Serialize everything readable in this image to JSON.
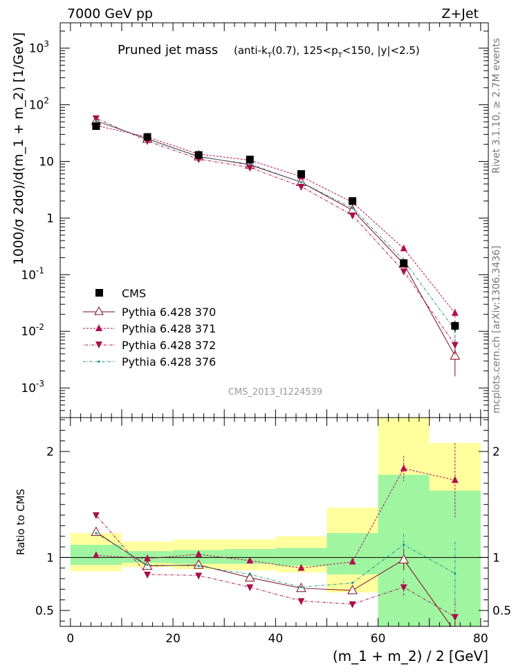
{
  "header": {
    "left": "7000 GeV pp",
    "right": "Z+Jet"
  },
  "side": {
    "rivet": "Rivet 3.1.10, ≥ 2.7M events",
    "mcplots": "mcplots.cern.ch [arXiv:1306.3436]"
  },
  "watermark": "CMS_2013_I1224539",
  "title": {
    "main": "Pruned jet mass",
    "cuts_a": "(anti-k",
    "cuts_a_sub": "T",
    "cuts_b": "(0.7), 125<p",
    "cuts_b_sub": "T",
    "cuts_c": "<150, |y|<2.5)"
  },
  "legend": {
    "cms": "CMS",
    "p370": "Pythia 6.428 370",
    "p371": "Pythia 6.428 371",
    "p372": "Pythia 6.428 372",
    "p376": "Pythia 6.428 376"
  },
  "colors": {
    "data": "#000000",
    "p370": "#7a0a1e",
    "p371": "#b0104f",
    "p372": "#a8104a",
    "p376": "#1f8f8a",
    "band_green": "#a0f5a0",
    "band_yellow": "#ffff9e"
  },
  "chart_data": {
    "type": "line",
    "x_edges": [
      0,
      10,
      20,
      30,
      40,
      50,
      60,
      70,
      80
    ],
    "x": [
      5,
      15,
      25,
      35,
      45,
      55,
      65,
      75
    ],
    "xlabel": "(m_1 + m_2) / 2 [GeV]",
    "xlim": [
      -2,
      81.5
    ],
    "xticks": [
      0,
      20,
      40,
      60,
      80
    ],
    "top": {
      "ylabel": "1000/σ 2dσ)/d(m_1 + m_2) [1/GeV]",
      "yscale": "log",
      "ylim": [
        0.0003,
        2800
      ],
      "ytick_labels": [
        "10",
        "10",
        "10",
        "10",
        "1",
        "10",
        "10",
        "10"
      ],
      "ytick_exponents": [
        "3",
        "2",
        "",
        "",
        "",
        "-1",
        "-2",
        "-3"
      ],
      "cms": [
        42,
        27,
        13,
        10.8,
        6.0,
        2.0,
        0.16,
        0.0125
      ],
      "cms_err": [
        2,
        1.2,
        0.6,
        0.5,
        0.3,
        0.1,
        0.015,
        0.003
      ],
      "series": [
        {
          "name": "Pythia 6.428 370",
          "values": [
            52,
            25,
            12.2,
            8.7,
            4.3,
            1.38,
            0.155,
            0.0037
          ],
          "err": [
            0,
            0,
            0,
            0,
            0,
            0,
            0.015,
            0.0021
          ]
        },
        {
          "name": "Pythia 6.428 371",
          "values": [
            43,
            27,
            13.5,
            10.5,
            5.4,
            1.9,
            0.29,
            0.021
          ],
          "err": [
            0,
            0,
            0,
            0,
            0,
            0,
            0.02,
            0.004
          ]
        },
        {
          "name": "Pythia 6.428 372",
          "values": [
            58,
            23,
            11.0,
            7.8,
            3.6,
            1.12,
            0.115,
            0.0058
          ],
          "err": [
            0,
            0,
            0,
            0,
            0,
            0,
            0.01,
            0.002
          ]
        },
        {
          "name": "Pythia 6.428 376",
          "values": [
            52,
            25,
            12.0,
            9.0,
            4.3,
            1.5,
            0.18,
            0.0105
          ],
          "err": [
            0,
            0,
            0,
            0,
            0,
            0,
            0.02,
            0.004
          ]
        }
      ]
    },
    "ratio": {
      "ylabel": "Ratio to CMS",
      "ylim": [
        0.35,
        2.32
      ],
      "yticks": [
        0.5,
        1,
        2
      ],
      "ytick_labels": [
        "0.5",
        "1",
        "2"
      ],
      "band_green": [
        [
          0.93,
          1.12
        ],
        [
          0.95,
          1.06
        ],
        [
          0.94,
          1.07
        ],
        [
          0.94,
          1.08
        ],
        [
          0.92,
          1.09
        ],
        [
          0.84,
          1.23
        ],
        [
          0.34,
          1.78
        ],
        [
          0.34,
          1.63
        ]
      ],
      "band_yellow": [
        [
          0.87,
          1.23
        ],
        [
          0.91,
          1.15
        ],
        [
          0.89,
          1.17
        ],
        [
          0.88,
          1.17
        ],
        [
          0.86,
          1.2
        ],
        [
          0.67,
          1.47
        ],
        [
          0.34,
          2.32
        ],
        [
          0.42,
          2.08
        ]
      ],
      "series": [
        {
          "name": "Pythia 6.428 370",
          "values": [
            1.24,
            0.92,
            0.93,
            0.81,
            0.71,
            0.69,
            0.98,
            0.3
          ],
          "err": [
            0,
            0,
            0,
            0,
            0,
            0,
            0.1,
            0.1
          ]
        },
        {
          "name": "Pythia 6.428 371",
          "values": [
            1.02,
            0.99,
            1.03,
            0.97,
            0.9,
            0.96,
            1.84,
            1.73
          ],
          "err": [
            0,
            0,
            0,
            0,
            0,
            0,
            0.12,
            0.35
          ]
        },
        {
          "name": "Pythia 6.428 372",
          "values": [
            1.4,
            0.84,
            0.83,
            0.72,
            0.59,
            0.56,
            0.72,
            0.44
          ],
          "err": [
            0,
            0,
            0,
            0,
            0,
            0,
            0.08,
            0.15
          ]
        },
        {
          "name": "Pythia 6.428 376",
          "values": [
            1.23,
            0.93,
            0.92,
            0.84,
            0.72,
            0.76,
            1.12,
            0.85
          ],
          "err": [
            0,
            0,
            0,
            0,
            0,
            0,
            0.1,
            0.3
          ]
        }
      ]
    }
  }
}
